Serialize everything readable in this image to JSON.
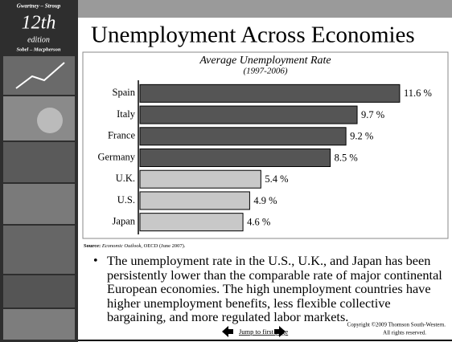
{
  "slide": {
    "sidebar": {
      "authors_top": "Gwartney – Stroup",
      "edition_number": "12th",
      "edition_word": "edition",
      "authors_bottom": "Sobel – Macpherson"
    },
    "title": "Unemployment Across Economies",
    "source_label": "Source:",
    "source_title": "Economic Outlook",
    "source_rest": ", OECD (June 2007).",
    "bullet": "The unemployment rate in the U.S., U.K., and Japan has been persistently lower than the comparable rate of major continental European economies.  The high unemployment countries have higher unemployment benefits, less flexible collective bargaining, and more regulated labor markets.",
    "nav_link": "Jump to first page",
    "copyright": [
      "Copyright ©2009  Thomson South-Western.",
      "All rights reserved."
    ]
  },
  "chart_data": {
    "type": "hbar",
    "title": "Average Unemployment Rate",
    "subtitle": "(1997-2006)",
    "categories": [
      "Spain",
      "Italy",
      "France",
      "Germany",
      "U.K.",
      "U.S.",
      "Japan"
    ],
    "values": [
      11.6,
      9.7,
      9.2,
      8.5,
      5.4,
      4.9,
      4.6
    ],
    "value_labels": [
      "11.6 %",
      "9.7 %",
      "9.2 %",
      "8.5 %",
      "5.4 %",
      "4.9 %",
      "4.6 %"
    ],
    "colors": [
      "#555555",
      "#555555",
      "#555555",
      "#555555",
      "#c8c8c8",
      "#c8c8c8",
      "#c8c8c8"
    ],
    "xlim": [
      0,
      12.5
    ]
  }
}
